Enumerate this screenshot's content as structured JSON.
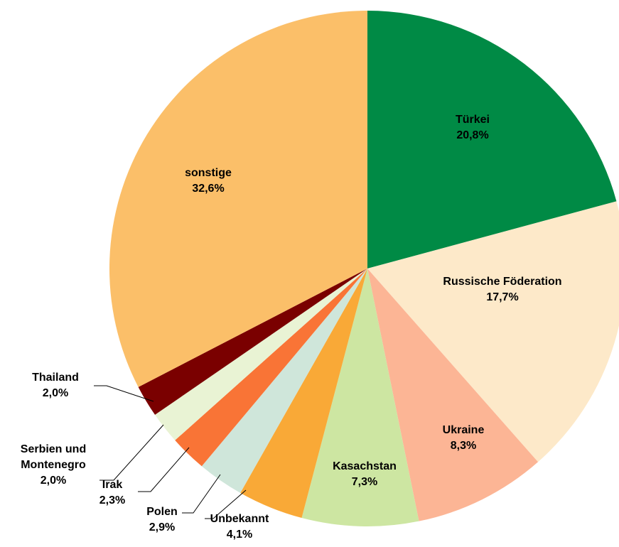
{
  "chart_data": {
    "type": "pie",
    "categories": [
      "Türkei",
      "Russische Föderation",
      "Ukraine",
      "Kasachstan",
      "Unbekannt",
      "Polen",
      "Irak",
      "Serbien und Montenegro",
      "Thailand",
      "sonstige"
    ],
    "values": [
      20.8,
      17.7,
      8.3,
      7.3,
      4.1,
      2.9,
      2.3,
      2.0,
      2.0,
      32.6
    ],
    "value_labels": [
      "20,8%",
      "17,7%",
      "8,3%",
      "7,3%",
      "4,1%",
      "2,9%",
      "2,3%",
      "2,0%",
      "2,0%",
      "32,6%"
    ],
    "colors": [
      "#008a45",
      "#fde9c9",
      "#fcb595",
      "#cde6a2",
      "#f9a937",
      "#cfe6da",
      "#f97436",
      "#e9f3d4",
      "#7a0000",
      "#fbbf69"
    ]
  }
}
